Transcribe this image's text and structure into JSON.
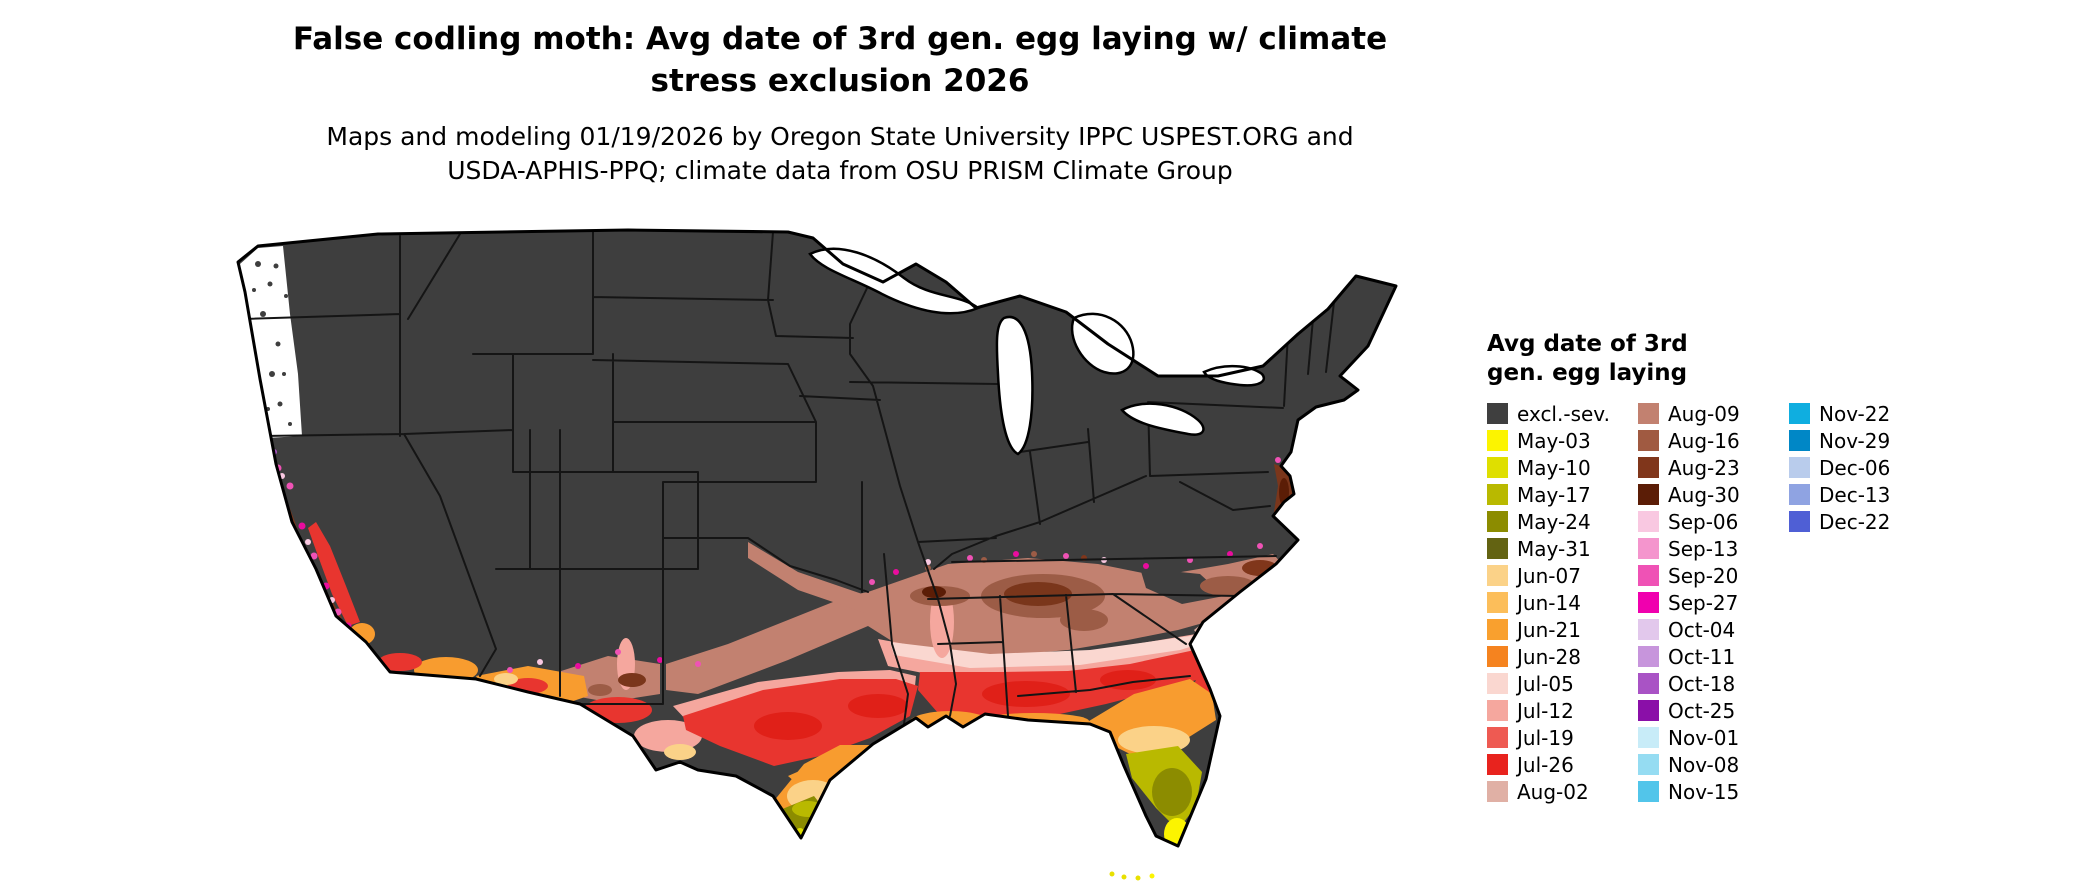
{
  "header": {
    "title_line1": "False codling moth: Avg date of 3rd gen. egg laying w/ climate",
    "title_line2": "stress exclusion 2026",
    "subtitle_line1": "Maps and modeling 01/19/2026 by Oregon State University IPPC USPEST.ORG and",
    "subtitle_line2": "USDA-APHIS-PPQ; climate data from OSU PRISM Climate Group"
  },
  "legend": {
    "title_line1": "Avg date of 3rd",
    "title_line2": "gen. egg laying",
    "columns": [
      {
        "items": [
          {
            "label": "excl.-sev.",
            "color": "#3F3F3F"
          },
          {
            "label": "May-03",
            "color": "#FCF400"
          },
          {
            "label": "May-10",
            "color": "#DFDF00"
          },
          {
            "label": "May-17",
            "color": "#B9B900"
          },
          {
            "label": "May-24",
            "color": "#8C8C00"
          },
          {
            "label": "May-31",
            "color": "#636312"
          },
          {
            "label": "Jun-07",
            "color": "#FBD288"
          },
          {
            "label": "Jun-14",
            "color": "#FCBE5A"
          },
          {
            "label": "Jun-21",
            "color": "#F9A02E"
          },
          {
            "label": "Jun-28",
            "color": "#F5831F"
          },
          {
            "label": "Jul-05",
            "color": "#FAD7D0"
          },
          {
            "label": "Jul-12",
            "color": "#F5A79E"
          },
          {
            "label": "Jul-19",
            "color": "#EE5A52"
          },
          {
            "label": "Jul-26",
            "color": "#E8231E"
          },
          {
            "label": "Aug-02",
            "color": "#E0B0A5"
          }
        ]
      },
      {
        "items": [
          {
            "label": "Aug-09",
            "color": "#C28170"
          },
          {
            "label": "Aug-16",
            "color": "#A05A41"
          },
          {
            "label": "Aug-23",
            "color": "#80361B"
          },
          {
            "label": "Aug-30",
            "color": "#5B1D06"
          },
          {
            "label": "Sep-06",
            "color": "#F9C8E1"
          },
          {
            "label": "Sep-13",
            "color": "#F495CD"
          },
          {
            "label": "Sep-20",
            "color": "#EF52B5"
          },
          {
            "label": "Sep-27",
            "color": "#F000AE"
          },
          {
            "label": "Oct-04",
            "color": "#E2C8EC"
          },
          {
            "label": "Oct-11",
            "color": "#C795DC"
          },
          {
            "label": "Oct-18",
            "color": "#A953C5"
          },
          {
            "label": "Oct-25",
            "color": "#8A0FA8"
          },
          {
            "label": "Nov-01",
            "color": "#C8ECF8"
          },
          {
            "label": "Nov-08",
            "color": "#95DCF2"
          },
          {
            "label": "Nov-15",
            "color": "#52C5EA"
          }
        ]
      },
      {
        "items": [
          {
            "label": "Nov-22",
            "color": "#0FAEE0"
          },
          {
            "label": "Nov-29",
            "color": "#0087C6"
          },
          {
            "label": "Dec-06",
            "color": "#B9CCEC"
          },
          {
            "label": "Dec-13",
            "color": "#8FA3E2"
          },
          {
            "label": "Dec-22",
            "color": "#4F5FD5"
          }
        ]
      }
    ]
  },
  "map": {
    "region": "Contiguous United States",
    "description": "Choropleth map of average date of 3rd generation egg laying; northern states shown as excluded (severe climate stress), southern states graded from May (yellow, south Florida / south Texas) through June-July (orange/red, Gulf states) to August-September (brown/pink) at the northern edge and California coast",
    "excluded_color": "#3E3E3E",
    "background_color": "#FFFFFF"
  }
}
